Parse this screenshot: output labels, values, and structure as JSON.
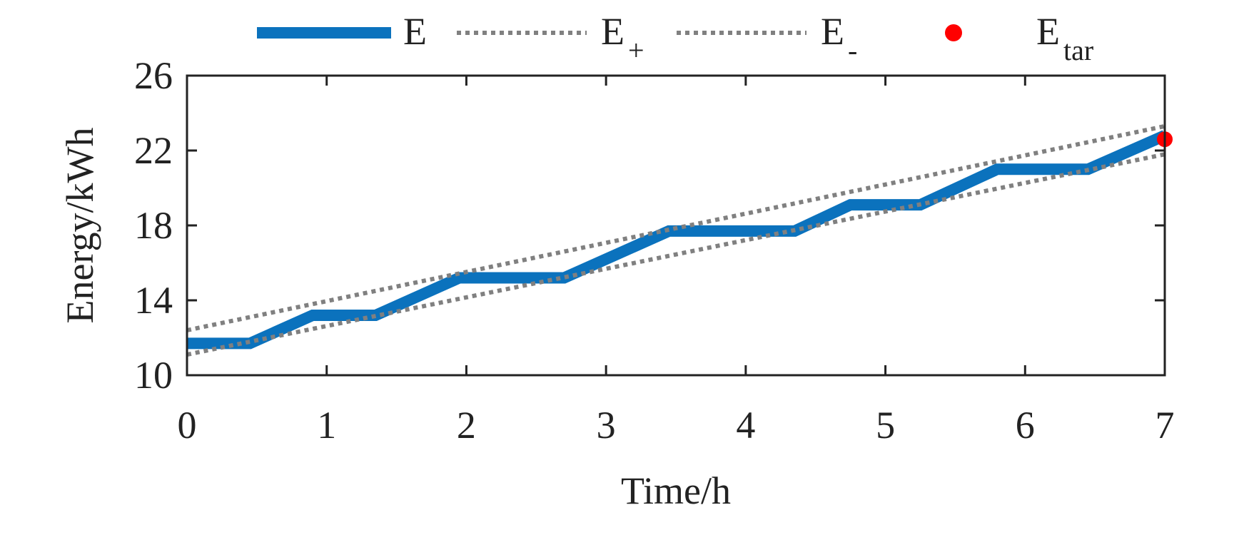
{
  "chart_data": {
    "type": "line",
    "title": "",
    "xlabel": "Time/h",
    "ylabel": "Energy/kWh",
    "xlim": [
      0,
      7
    ],
    "ylim": [
      10,
      26
    ],
    "xticks": [
      0,
      1,
      2,
      3,
      4,
      5,
      6,
      7
    ],
    "yticks": [
      10,
      14,
      18,
      22,
      26
    ],
    "grid": false,
    "legend_position": "top",
    "colors": {
      "E": "#0b72bd",
      "E_plus": "#808080",
      "E_minus": "#808080",
      "E_tar": "#ff0000",
      "axis": "#222222"
    },
    "legend": [
      {
        "key": "E",
        "base": "E",
        "sub": ""
      },
      {
        "key": "E_plus",
        "base": "E",
        "sub": "+"
      },
      {
        "key": "E_minus",
        "base": "E",
        "sub": "-"
      },
      {
        "key": "E_tar",
        "base": "E",
        "sub": "tar"
      }
    ],
    "series": [
      {
        "key": "E",
        "style": "solid",
        "x": [
          0,
          0.45,
          0.9,
          1.35,
          1.95,
          2.7,
          3.45,
          4.35,
          4.75,
          5.25,
          5.8,
          6.45,
          7.0
        ],
        "y": [
          11.7,
          11.7,
          13.2,
          13.2,
          15.2,
          15.2,
          17.7,
          17.7,
          19.1,
          19.1,
          21.0,
          21.0,
          22.8
        ]
      },
      {
        "key": "E_plus",
        "style": "dotted",
        "x": [
          0,
          7
        ],
        "y": [
          12.4,
          23.3
        ]
      },
      {
        "key": "E_minus",
        "style": "dotted",
        "x": [
          0,
          7
        ],
        "y": [
          11.1,
          21.8
        ]
      },
      {
        "key": "E_tar",
        "style": "marker",
        "x": [
          7
        ],
        "y": [
          22.6
        ]
      }
    ]
  }
}
